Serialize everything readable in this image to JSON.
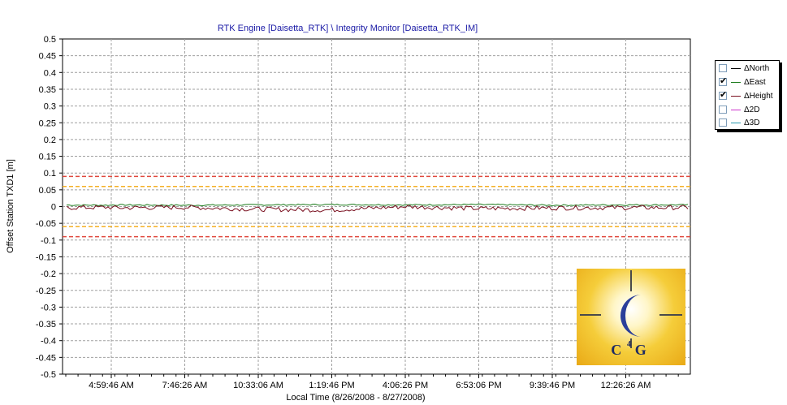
{
  "chart_data": {
    "type": "line",
    "title": "RTK Engine [Daisetta_RTK] \\ Integrity Monitor [Daisetta_RTK_IM]",
    "xlabel": "Local Time (8/26/2008 - 8/27/2008)",
    "ylabel": "Offset Station TXD1 [m]",
    "ylim": [
      -0.5,
      0.5
    ],
    "y_ticks": [
      "0.5",
      "0.45",
      "0.4",
      "0.35",
      "0.3",
      "0.25",
      "0.2",
      "0.15",
      "0.1",
      "0.05",
      "0",
      "-0.05",
      "-0.1",
      "-0.15",
      "-0.2",
      "-0.25",
      "-0.3",
      "-0.35",
      "-0.4",
      "-0.45",
      "-0.5"
    ],
    "x_ticks": [
      "4:59:46 AM",
      "7:46:26 AM",
      "10:33:06 AM",
      "1:19:46 PM",
      "4:06:26 PM",
      "6:53:06 PM",
      "9:39:46 PM",
      "12:26:26 AM"
    ],
    "grid": true,
    "legend_position": "right",
    "thresholds": [
      {
        "value": 0.09,
        "color": "#e0483c"
      },
      {
        "value": 0.06,
        "color": "#f5b025"
      },
      {
        "value": -0.06,
        "color": "#f5b025"
      },
      {
        "value": -0.09,
        "color": "#e0483c"
      }
    ],
    "series": [
      {
        "name": "ΔNorth",
        "checked": false,
        "color": "#000000"
      },
      {
        "name": "ΔEast",
        "checked": true,
        "color": "#1a7a1a",
        "x": [
          "4:59:46 AM",
          "7:46:26 AM",
          "10:33:06 AM",
          "1:19:46 PM",
          "4:06:26 PM",
          "6:53:06 PM",
          "9:39:46 PM",
          "12:26:26 AM"
        ],
        "values": [
          0.005,
          0.004,
          0.005,
          0.006,
          0.005,
          0.006,
          0.004,
          0.005
        ]
      },
      {
        "name": "ΔHeight",
        "checked": true,
        "color": "#7a1020",
        "x": [
          "4:59:46 AM",
          "7:46:26 AM",
          "10:33:06 AM",
          "1:19:46 PM",
          "4:06:26 PM",
          "6:53:06 PM",
          "9:39:46 PM",
          "12:26:26 AM"
        ],
        "values": [
          -0.004,
          -0.002,
          -0.008,
          -0.01,
          0.0,
          -0.006,
          -0.004,
          -0.003
        ]
      },
      {
        "name": "Δ2D",
        "checked": false,
        "color": "#cc33cc"
      },
      {
        "name": "Δ3D",
        "checked": false,
        "color": "#2a9ab0"
      }
    ]
  },
  "legend": {
    "items": [
      "ΔNorth",
      "ΔEast",
      "ΔHeight",
      "Δ2D",
      "Δ3D"
    ]
  },
  "logo": {
    "text": "C G",
    "superscript": "4"
  }
}
